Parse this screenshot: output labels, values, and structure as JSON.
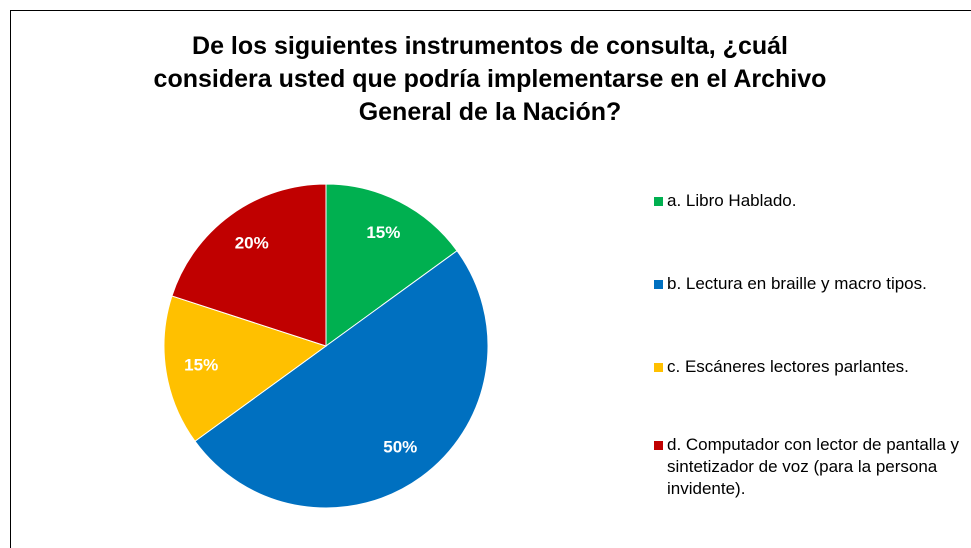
{
  "chart_data": {
    "type": "pie",
    "title": "De los siguientes instrumentos de consulta, ¿cuál considera usted que podría implementarse en el Archivo General de la Nación?",
    "categories": [
      "a. Libro Hablado.",
      "b. Lectura en braille y macro tipos.",
      "c. Escáneres lectores parlantes.",
      "d. Computador con lector de pantalla y sintetizador de voz (para la persona invidente)."
    ],
    "values": [
      15,
      50,
      15,
      20
    ],
    "value_labels": [
      "15%",
      "50%",
      "15%",
      "20%"
    ],
    "colors": [
      "#00b050",
      "#0070c0",
      "#ffc000",
      "#c00000"
    ],
    "legend": "right"
  }
}
